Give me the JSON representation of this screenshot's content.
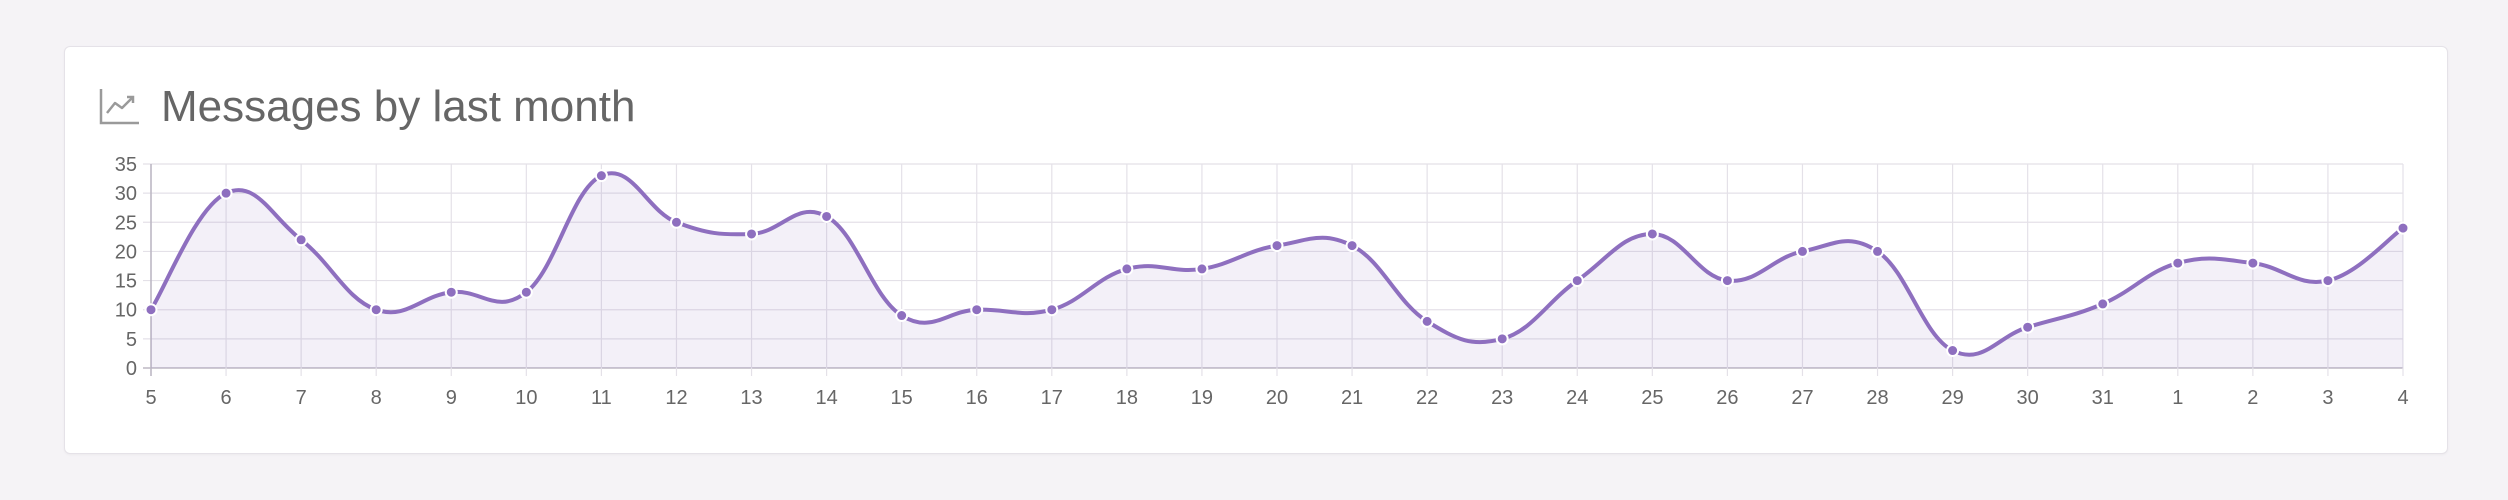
{
  "card": {
    "title": "Messages by last month",
    "icon": "line-chart-icon"
  },
  "colors": {
    "line": "#8e6fbf",
    "fill": "rgba(142,111,191,0.10)",
    "grid": "#e4e1e8",
    "point_stroke": "#ffffff"
  },
  "chart_data": {
    "type": "line",
    "title": "Messages by last month",
    "xlabel": "",
    "ylabel": "",
    "categories": [
      "5",
      "6",
      "7",
      "8",
      "9",
      "10",
      "11",
      "12",
      "13",
      "14",
      "15",
      "16",
      "17",
      "18",
      "19",
      "20",
      "21",
      "22",
      "23",
      "24",
      "25",
      "26",
      "27",
      "28",
      "29",
      "30",
      "31",
      "1",
      "2",
      "3",
      "4"
    ],
    "series": [
      {
        "values": [
          10,
          30,
          22,
          10,
          13,
          13,
          33,
          25,
          23,
          26,
          9,
          10,
          10,
          17,
          17,
          21,
          21,
          8,
          5,
          15,
          23,
          15,
          20,
          20,
          3,
          7,
          11,
          18,
          18,
          15,
          24
        ]
      }
    ],
    "ylim": [
      0,
      35
    ],
    "yticks": [
      0,
      5,
      10,
      15,
      20,
      25,
      30,
      35
    ],
    "grid": true,
    "filled_area": true,
    "smooth": true,
    "legend": "none"
  }
}
